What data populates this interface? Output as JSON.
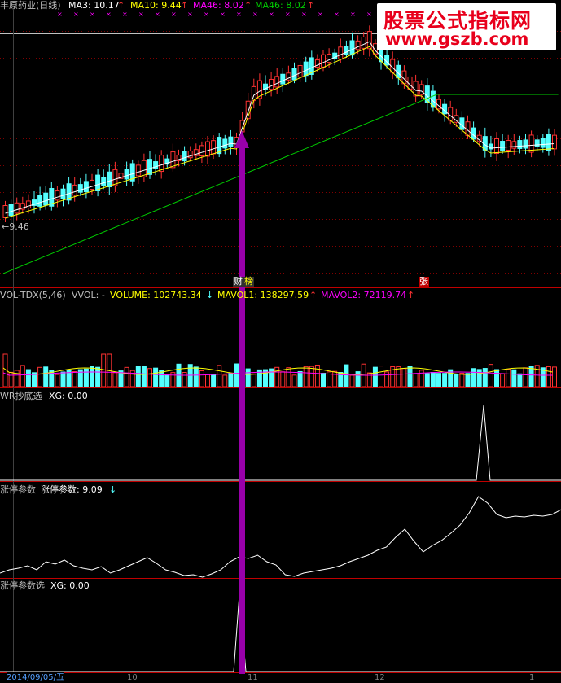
{
  "main": {
    "title": "丰原药业(日线)",
    "ma3": "MA3: 10.17",
    "ma10": "MA10: 9.44",
    "ma46a": "MA46: 8.02",
    "ma46b": "MA46: 8.02",
    "low_label": "←9.46",
    "badge_cai": "财",
    "badge_bang": "榜",
    "badge_zhang": "张"
  },
  "vol": {
    "title": "VOL-TDX(5,46)",
    "vvol": "VVOL: -",
    "volume": "VOLUME: 102743.34",
    "mavol1": "MAVOL1: 138297.59",
    "mavol2": "MAVOL2: 72119.74"
  },
  "wr": {
    "title": "WR抄底选",
    "xg": "XG: 0.00"
  },
  "zt": {
    "title": "涨停参数",
    "value": "涨停参数: 9.09"
  },
  "ztx": {
    "title": "涨停参数选",
    "xg": "XG: 0.00"
  },
  "footer": {
    "date": "2014/09/05/五",
    "tick1": "10",
    "tick2": "11",
    "tick3": "12",
    "tick4": "1"
  },
  "watermark": {
    "line1": "股票公式指标网",
    "line2": "www.gszb.com"
  },
  "colors": {
    "up": "#ff3232",
    "down": "#54ffff",
    "ma3": "#ffffff",
    "ma10": "#ffff00",
    "ma46": "#ff00ff",
    "ma_green": "#00cc00",
    "arrow": "#9900aa",
    "grid": "#800000"
  }
}
